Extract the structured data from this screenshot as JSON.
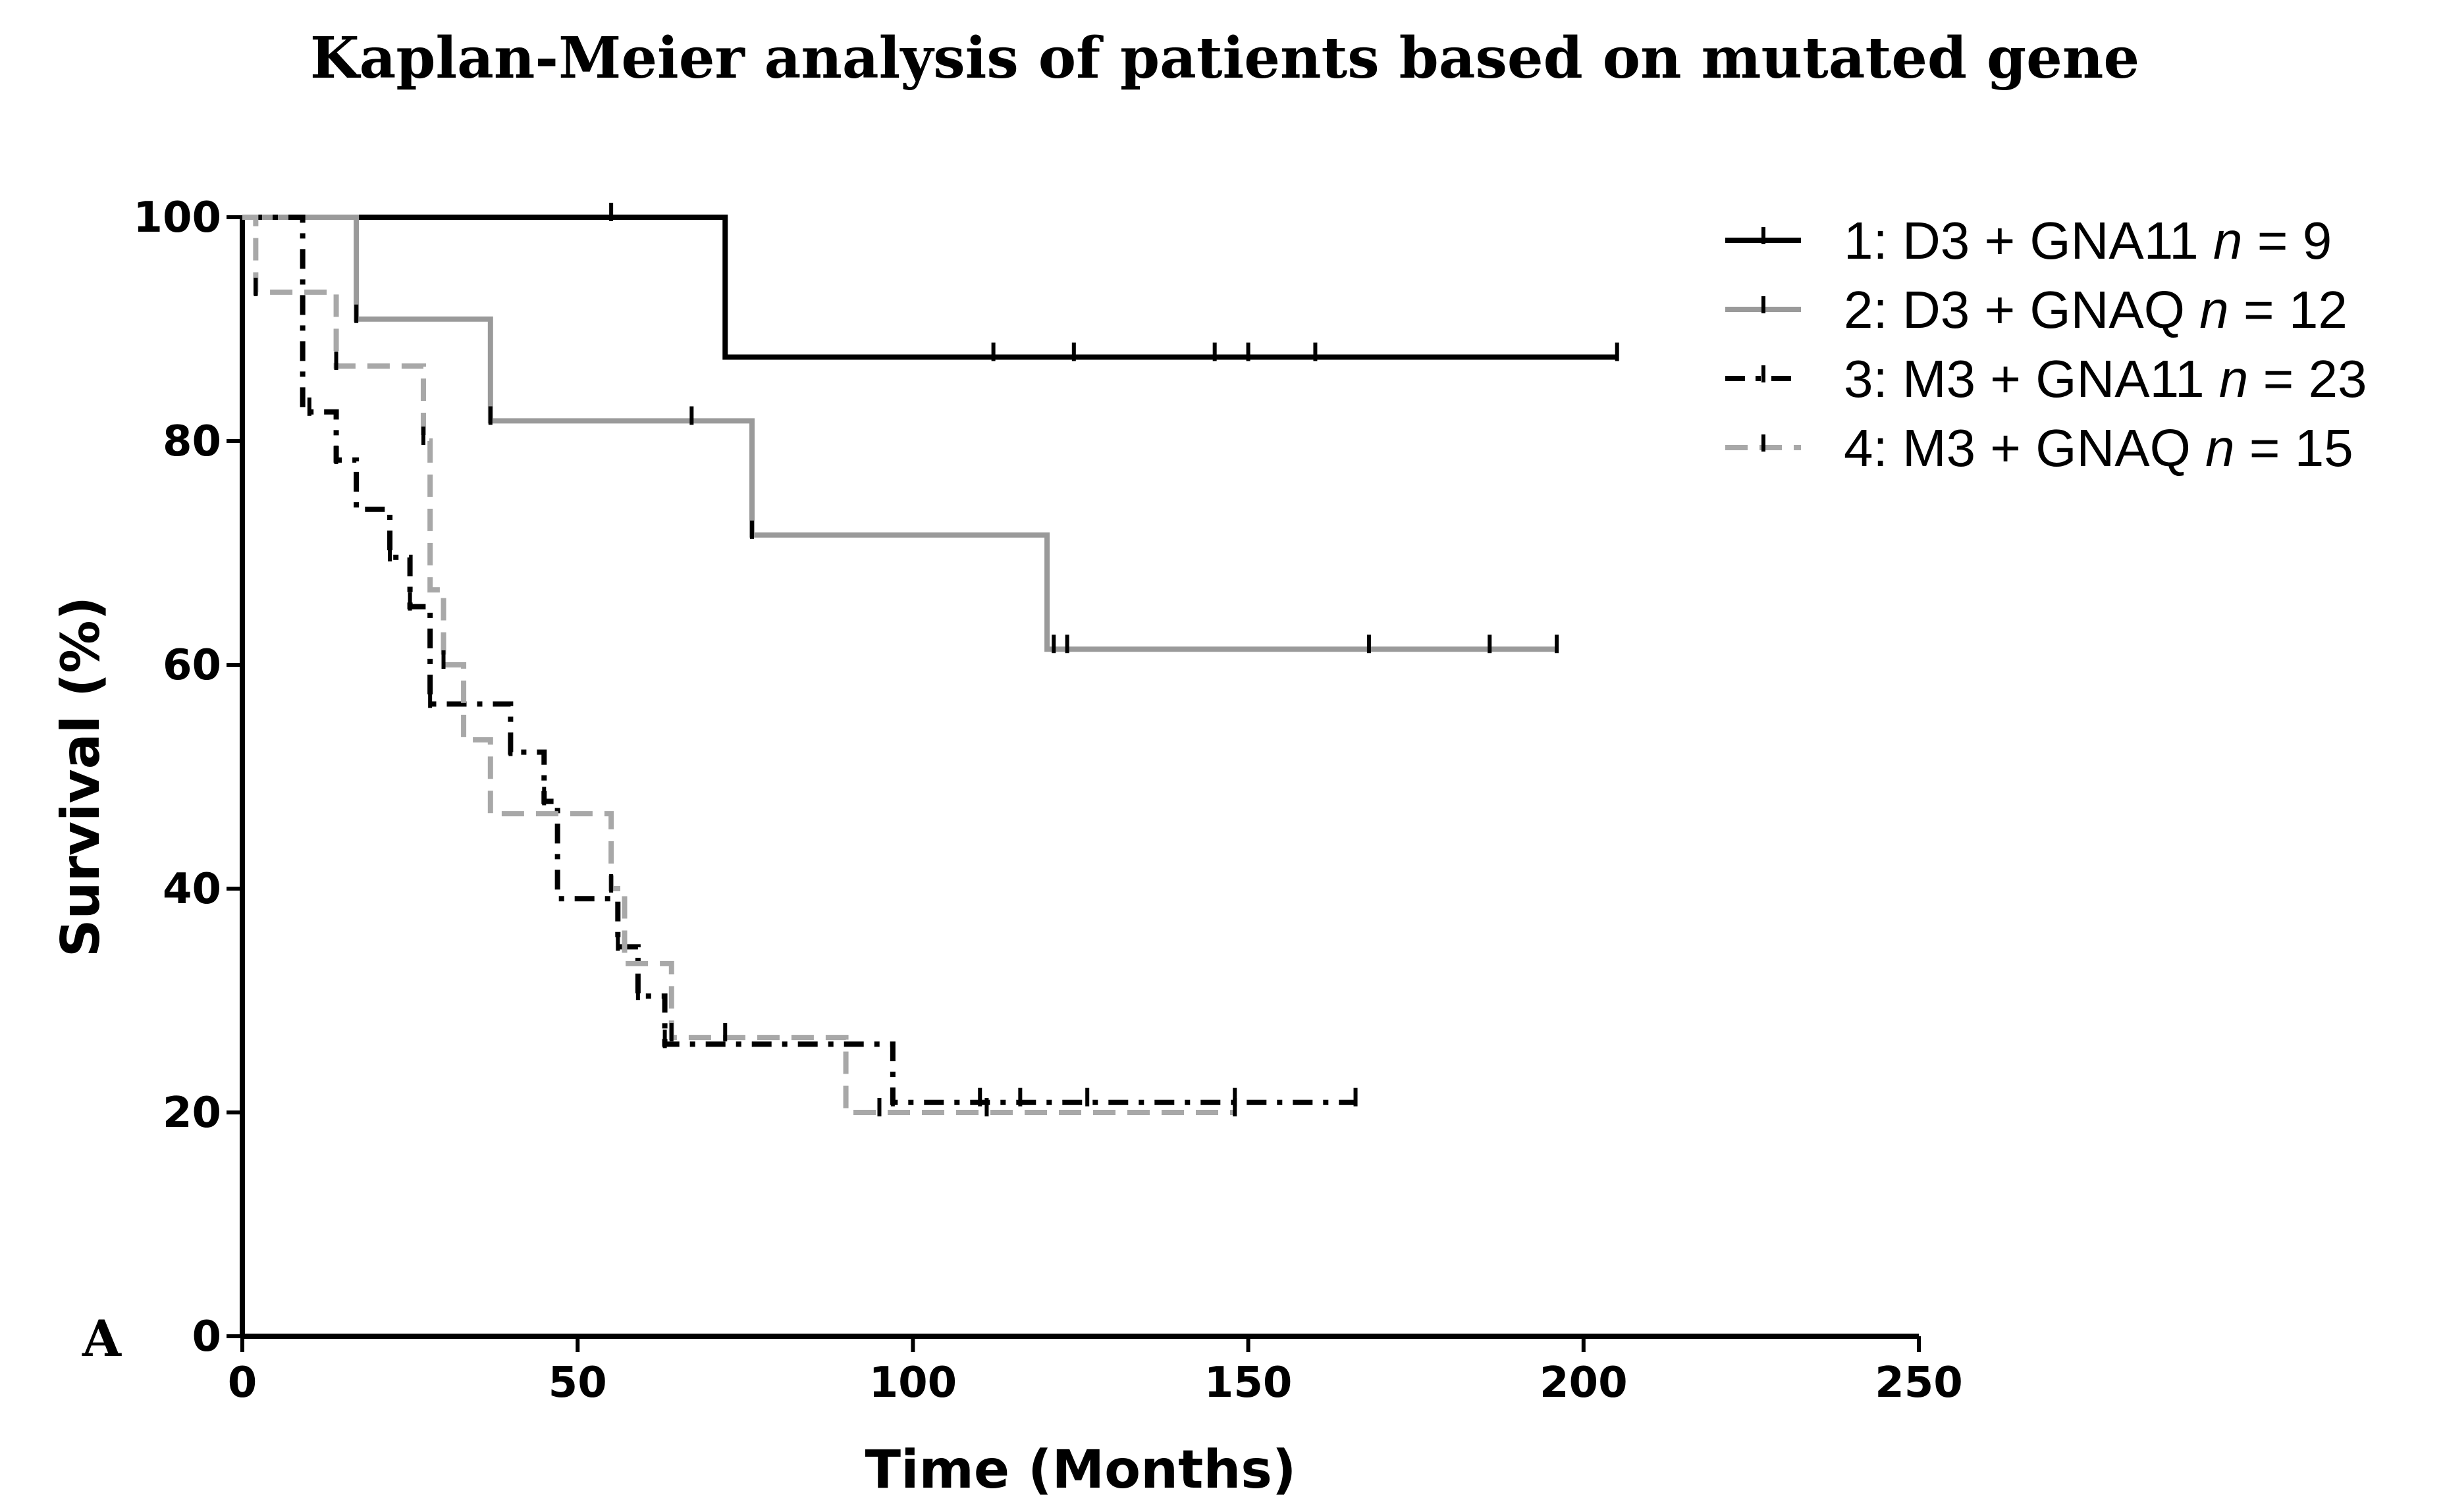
{
  "chart_data": {
    "type": "line",
    "subtype": "kaplan-meier",
    "title": "Kaplan-Meier analysis of patients based on mutated gene",
    "panel_label": "A",
    "xlabel": "Time (Months)",
    "ylabel": "Survival (%)",
    "xlim": [
      0,
      250
    ],
    "ylim": [
      0,
      100
    ],
    "x_ticks": [
      0,
      50,
      100,
      150,
      200,
      250
    ],
    "y_ticks": [
      0,
      20,
      40,
      60,
      80,
      100
    ],
    "grid": false,
    "legend_position": "top-right",
    "series": [
      {
        "name": "1: D3 + GNA11",
        "label_prefix": "1: D3 + GNA11 ",
        "n_label": "n = 9",
        "n_var": "n",
        "n_rest": " = 9",
        "color": "#000000",
        "dash": "solid",
        "steps": [
          [
            0,
            100
          ],
          [
            72,
            87.5
          ],
          [
            205,
            87.5
          ]
        ],
        "censor": [
          55,
          112,
          124,
          145,
          150,
          160,
          205
        ]
      },
      {
        "name": "2: D3 + GNAQ",
        "label_prefix": "2: D3 + GNAQ ",
        "n_label": "n = 12",
        "n_var": "n",
        "n_rest": " = 12",
        "color": "#9a9a9a",
        "dash": "solid",
        "steps": [
          [
            0,
            100
          ],
          [
            17,
            90.9
          ],
          [
            37,
            81.8
          ],
          [
            76,
            71.6
          ],
          [
            120,
            61.4
          ],
          [
            196,
            61.4
          ]
        ],
        "censor": [
          17,
          37,
          67,
          76,
          121,
          123,
          168,
          186,
          196
        ]
      },
      {
        "name": "3: M3 + GNA11",
        "label_prefix": "3: M3 + GNA11 ",
        "n_label": "n = 23",
        "n_var": "n",
        "n_rest": " = 23",
        "color": "#000000",
        "dash": "dashdot",
        "steps": [
          [
            0,
            100
          ],
          [
            9,
            82.6
          ],
          [
            14,
            78.3
          ],
          [
            17,
            73.9
          ],
          [
            22,
            69.6
          ],
          [
            25,
            65.2
          ],
          [
            28,
            56.5
          ],
          [
            40,
            52.2
          ],
          [
            45,
            47.8
          ],
          [
            47,
            39.1
          ],
          [
            56,
            34.8
          ],
          [
            59,
            30.4
          ],
          [
            63,
            26.1
          ],
          [
            97,
            20.9
          ],
          [
            166,
            20.9
          ]
        ],
        "censor": [
          10,
          14,
          22,
          25,
          28,
          40,
          45,
          56,
          59,
          63,
          97,
          110,
          116,
          126,
          148,
          166
        ]
      },
      {
        "name": "4: M3 + GNAQ",
        "label_prefix": "4: M3 + GNAQ ",
        "n_label": "n = 15",
        "n_var": "n",
        "n_rest": " = 15",
        "color": "#a8a8a8",
        "dash": "dashed",
        "steps": [
          [
            0,
            100
          ],
          [
            2,
            93.3
          ],
          [
            14,
            86.7
          ],
          [
            27,
            80
          ],
          [
            28,
            66.7
          ],
          [
            30,
            60
          ],
          [
            33,
            53.3
          ],
          [
            37,
            46.7
          ],
          [
            55,
            40
          ],
          [
            57,
            33.3
          ],
          [
            64,
            26.7
          ],
          [
            90,
            20
          ],
          [
            148,
            20
          ]
        ],
        "censor": [
          2,
          14,
          27,
          30,
          55,
          64,
          72,
          95,
          111,
          148
        ]
      }
    ]
  }
}
